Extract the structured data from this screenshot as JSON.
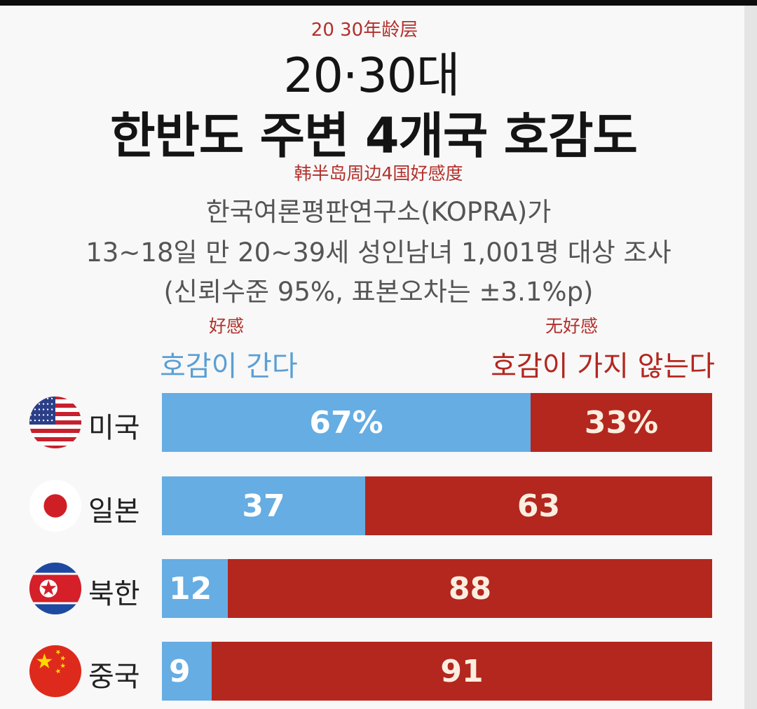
{
  "annotation": {
    "age_cn": "20 30年龄层",
    "title_cn": "韩半岛周边4国好感度",
    "favorable_cn": "好感",
    "unfavorable_cn": "无好感"
  },
  "header": {
    "age": "20·30대",
    "title": "한반도 주변 4개국 호감도"
  },
  "description": {
    "line1": "한국여론평판연구소(KOPRA)가",
    "line2": "13~18일 만 20~39세 성인남녀 1,001명 대상 조사",
    "line3": "(신뢰수준 95%, 표본오차는 ±3.1%p)"
  },
  "colors": {
    "favorable": "#65ade3",
    "unfavorable": "#b3271f",
    "background": "#f8f8f8"
  },
  "chart_data": {
    "type": "bar",
    "orientation": "horizontal",
    "stacked": true,
    "categories": [
      "미국",
      "일본",
      "북한",
      "중국"
    ],
    "flags": [
      "usa-flag",
      "japan-flag",
      "north-korea-flag",
      "china-flag"
    ],
    "series": [
      {
        "name": "호감이 간다",
        "values": [
          67,
          37,
          12,
          9
        ],
        "labels": [
          "67%",
          "37",
          "12",
          "9"
        ]
      },
      {
        "name": "호감이 가지 않는다",
        "values": [
          33,
          63,
          88,
          91
        ],
        "labels": [
          "33%",
          "63",
          "88",
          "91"
        ]
      }
    ],
    "xlim": [
      0,
      100
    ]
  }
}
